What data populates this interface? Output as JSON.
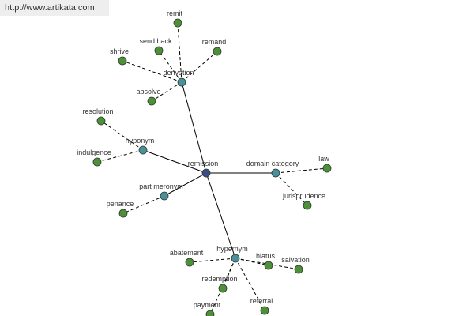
{
  "header": {
    "url": "http://www.artikata.com"
  },
  "graph": {
    "center": "remission",
    "groups": [
      {
        "label": "derivation",
        "leaves": [
          "remit",
          "send back",
          "remand",
          "shrive",
          "absolve"
        ]
      },
      {
        "label": "hyponym",
        "leaves": [
          "resolution",
          "indulgence"
        ]
      },
      {
        "label": "part meronym",
        "leaves": [
          "penance"
        ]
      },
      {
        "label": "domain category",
        "leaves": [
          "law",
          "jurisprudence"
        ]
      },
      {
        "label": "hypernym",
        "leaves": [
          "abatement",
          "hiatus",
          "salvation",
          "redemption",
          "payment",
          "referral"
        ]
      }
    ]
  }
}
